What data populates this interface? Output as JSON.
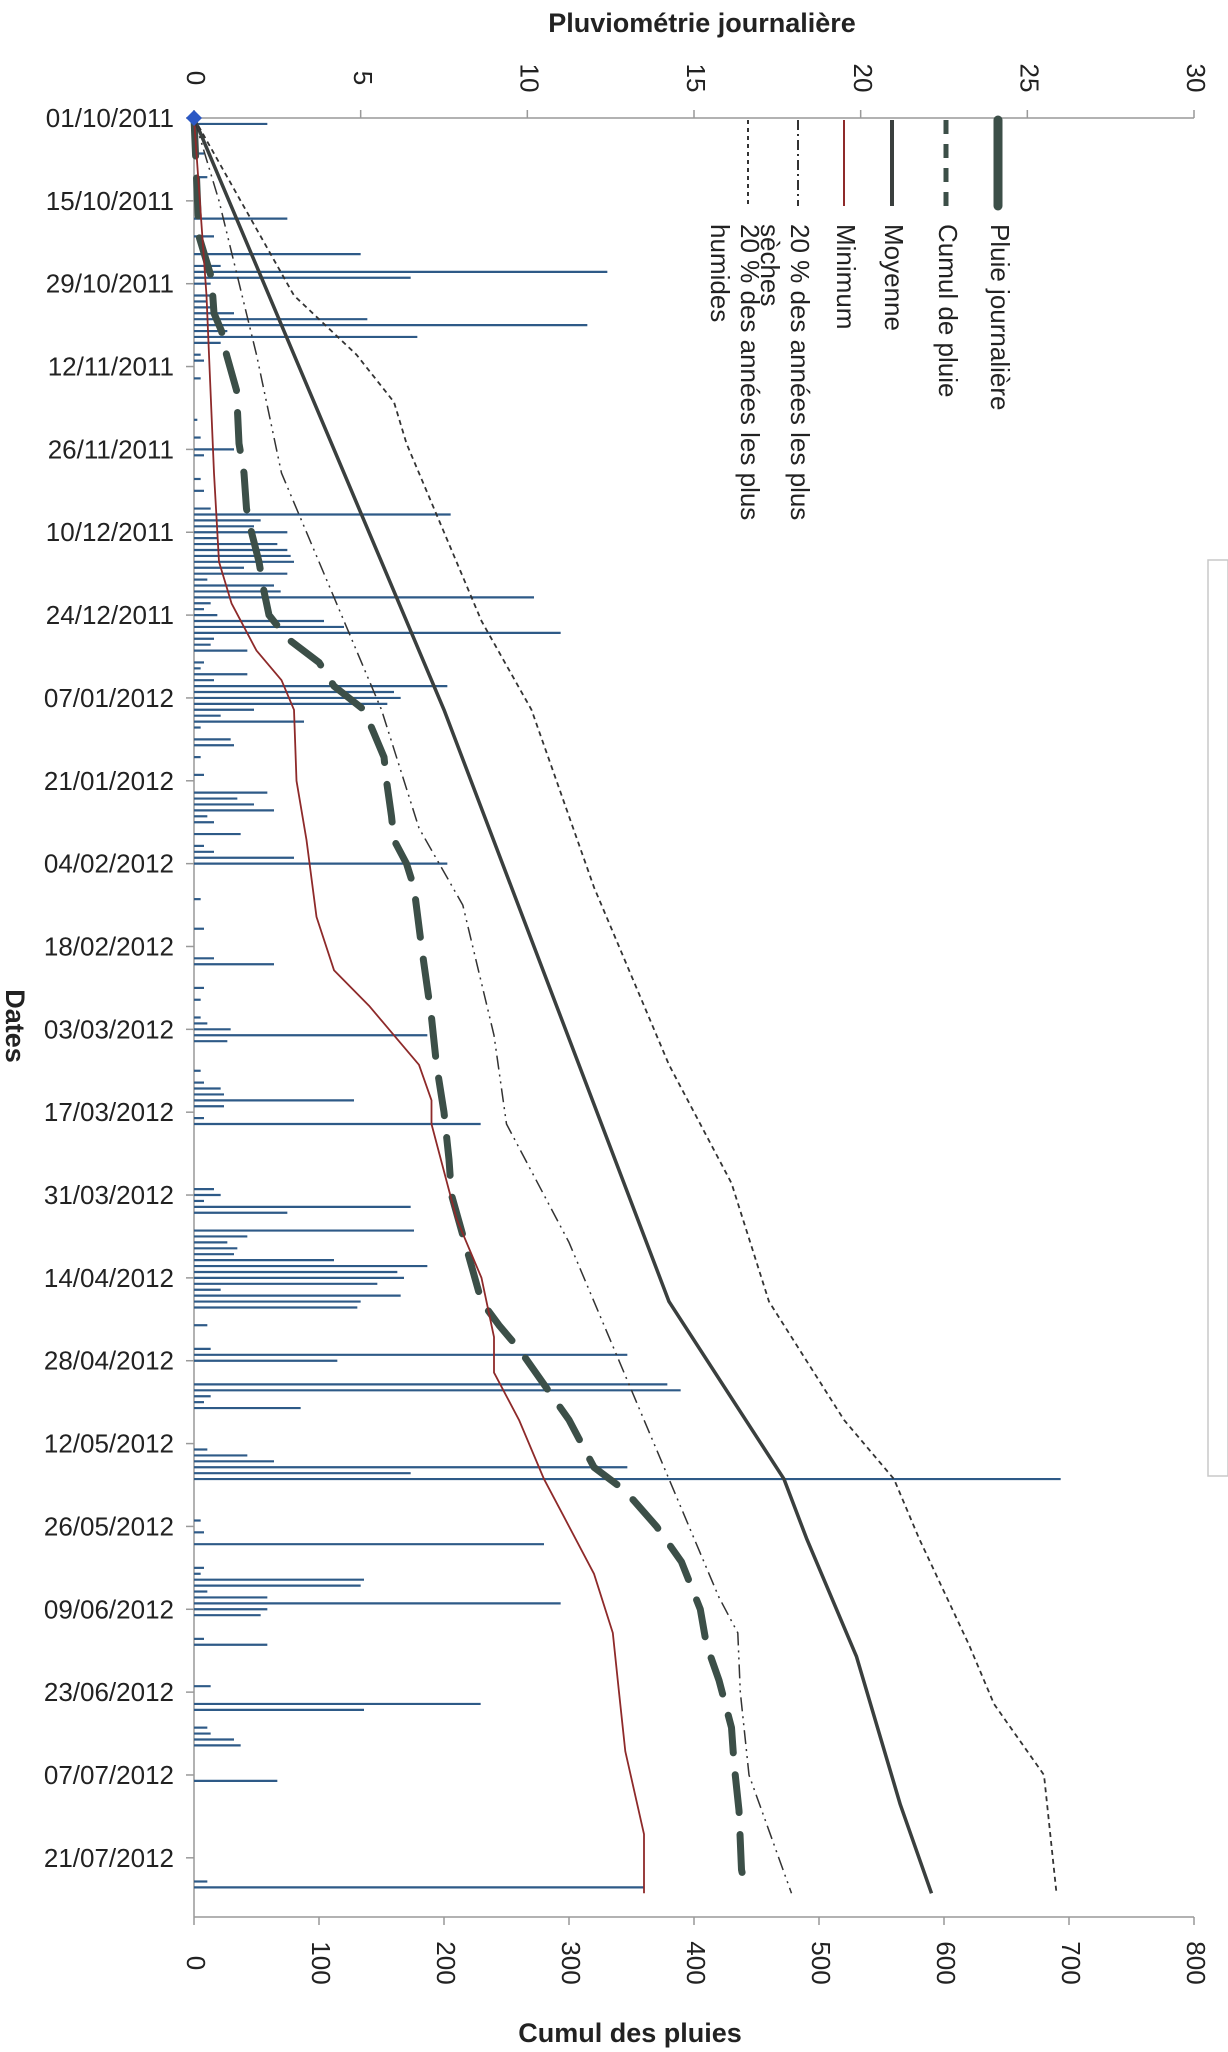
{
  "chart_data": {
    "type": "line",
    "orientation": "rotated-90",
    "top_axis_title": "Pluviométrie journalière",
    "bottom_axis_title": "Cumul des pluies",
    "date_axis_title": "Dates",
    "daily_axis": {
      "min": 0,
      "max": 30,
      "ticks": [
        "0",
        "5",
        "10",
        "15",
        "20",
        "25",
        "30"
      ]
    },
    "cumul_axis": {
      "min": 0,
      "max": 800,
      "ticks": [
        "0",
        "100",
        "200",
        "300",
        "400",
        "500",
        "600",
        "700",
        "800"
      ]
    },
    "date_ticks": [
      "01/10/2011",
      "15/10/2011",
      "29/10/2011",
      "12/11/2011",
      "26/11/2011",
      "10/12/2011",
      "24/12/2011",
      "07/01/2012",
      "21/01/2012",
      "04/02/2012",
      "18/02/2012",
      "03/03/2012",
      "17/03/2012",
      "31/03/2012",
      "14/04/2012",
      "28/04/2012",
      "12/05/2012",
      "26/05/2012",
      "09/06/2012",
      "23/06/2012",
      "07/07/2012",
      "21/07/2012"
    ],
    "grid": false,
    "legend_position": "top-right (rotated)",
    "legend": [
      {
        "key": "pluie",
        "label": "Pluie journalière",
        "color": "#3c4f48",
        "style": "thick"
      },
      {
        "key": "cumul",
        "label": "Cumul de pluie",
        "color": "#3c4f48",
        "style": "dash"
      },
      {
        "key": "moyenne",
        "label": "Moyenne",
        "color": "#3a3f3e",
        "style": "solid"
      },
      {
        "key": "minimum",
        "label": "Minimum",
        "color": "#8e2a2a",
        "style": "solid-thin"
      },
      {
        "key": "seches",
        "label_lines": [
          "20 % des années les plus",
          "sèches"
        ],
        "color": "#333333",
        "style": "dash-dot-dot"
      },
      {
        "key": "humides",
        "label_lines": [
          "20 % des années les plus",
          "humides"
        ],
        "color": "#333333",
        "style": "dotted"
      }
    ],
    "daily_rain": [
      {
        "day": 1,
        "value": 2.2
      },
      {
        "day": 6,
        "value": 0.3
      },
      {
        "day": 10,
        "value": 0.4
      },
      {
        "day": 17,
        "value": 2.8
      },
      {
        "day": 20,
        "value": 0.6
      },
      {
        "day": 23,
        "value": 5.0
      },
      {
        "day": 25,
        "value": 0.8
      },
      {
        "day": 26,
        "value": 12.4
      },
      {
        "day": 27,
        "value": 6.5
      },
      {
        "day": 28,
        "value": 0.5
      },
      {
        "day": 30,
        "value": 0.5
      },
      {
        "day": 31,
        "value": 0.4
      },
      {
        "day": 32,
        "value": 0.6
      },
      {
        "day": 33,
        "value": 1.2
      },
      {
        "day": 34,
        "value": 5.2
      },
      {
        "day": 35,
        "value": 11.8
      },
      {
        "day": 36,
        "value": 1.0
      },
      {
        "day": 37,
        "value": 6.7
      },
      {
        "day": 38,
        "value": 0.8
      },
      {
        "day": 40,
        "value": 0.2
      },
      {
        "day": 41,
        "value": 0.3
      },
      {
        "day": 44,
        "value": 0.2
      },
      {
        "day": 51,
        "value": 0.1
      },
      {
        "day": 54,
        "value": 0.2
      },
      {
        "day": 56,
        "value": 1.2
      },
      {
        "day": 57,
        "value": 0.3
      },
      {
        "day": 61,
        "value": 0.2
      },
      {
        "day": 63,
        "value": 0.3
      },
      {
        "day": 66,
        "value": 0.5
      },
      {
        "day": 67,
        "value": 7.7
      },
      {
        "day": 68,
        "value": 2.0
      },
      {
        "day": 69,
        "value": 1.8
      },
      {
        "day": 70,
        "value": 2.8
      },
      {
        "day": 71,
        "value": 0.7
      },
      {
        "day": 72,
        "value": 2.5
      },
      {
        "day": 73,
        "value": 2.8
      },
      {
        "day": 74,
        "value": 2.9
      },
      {
        "day": 75,
        "value": 3.0
      },
      {
        "day": 76,
        "value": 1.5
      },
      {
        "day": 77,
        "value": 2.8
      },
      {
        "day": 78,
        "value": 0.4
      },
      {
        "day": 79,
        "value": 2.4
      },
      {
        "day": 80,
        "value": 2.6
      },
      {
        "day": 81,
        "value": 10.2
      },
      {
        "day": 82,
        "value": 0.5
      },
      {
        "day": 83,
        "value": 0.3
      },
      {
        "day": 84,
        "value": 0.7
      },
      {
        "day": 85,
        "value": 3.9
      },
      {
        "day": 86,
        "value": 4.5
      },
      {
        "day": 87,
        "value": 11.0
      },
      {
        "day": 88,
        "value": 0.6
      },
      {
        "day": 89,
        "value": 0.5
      },
      {
        "day": 90,
        "value": 1.6
      },
      {
        "day": 92,
        "value": 0.3
      },
      {
        "day": 93,
        "value": 0.2
      },
      {
        "day": 94,
        "value": 1.6
      },
      {
        "day": 95,
        "value": 0.6
      },
      {
        "day": 96,
        "value": 7.6
      },
      {
        "day": 97,
        "value": 6.0
      },
      {
        "day": 98,
        "value": 6.2
      },
      {
        "day": 99,
        "value": 5.8
      },
      {
        "day": 100,
        "value": 1.8
      },
      {
        "day": 101,
        "value": 0.8
      },
      {
        "day": 102,
        "value": 3.3
      },
      {
        "day": 103,
        "value": 0.2
      },
      {
        "day": 105,
        "value": 1.1
      },
      {
        "day": 106,
        "value": 1.2
      },
      {
        "day": 108,
        "value": 0.2
      },
      {
        "day": 111,
        "value": 0.3
      },
      {
        "day": 114,
        "value": 2.2
      },
      {
        "day": 115,
        "value": 1.3
      },
      {
        "day": 116,
        "value": 1.8
      },
      {
        "day": 117,
        "value": 2.4
      },
      {
        "day": 118,
        "value": 0.4
      },
      {
        "day": 119,
        "value": 0.6
      },
      {
        "day": 121,
        "value": 1.4
      },
      {
        "day": 123,
        "value": 0.3
      },
      {
        "day": 124,
        "value": 0.6
      },
      {
        "day": 125,
        "value": 3.0
      },
      {
        "day": 126,
        "value": 7.6
      },
      {
        "day": 132,
        "value": 0.2
      },
      {
        "day": 137,
        "value": 0.3
      },
      {
        "day": 142,
        "value": 0.6
      },
      {
        "day": 143,
        "value": 2.4
      },
      {
        "day": 147,
        "value": 0.3
      },
      {
        "day": 149,
        "value": 0.2
      },
      {
        "day": 152,
        "value": 0.2
      },
      {
        "day": 153,
        "value": 0.4
      },
      {
        "day": 154,
        "value": 1.1
      },
      {
        "day": 155,
        "value": 7.0
      },
      {
        "day": 156,
        "value": 1.0
      },
      {
        "day": 161,
        "value": 0.2
      },
      {
        "day": 163,
        "value": 0.3
      },
      {
        "day": 164,
        "value": 0.8
      },
      {
        "day": 165,
        "value": 0.9
      },
      {
        "day": 166,
        "value": 4.8
      },
      {
        "day": 167,
        "value": 0.9
      },
      {
        "day": 169,
        "value": 0.3
      },
      {
        "day": 170,
        "value": 8.6
      },
      {
        "day": 181,
        "value": 0.6
      },
      {
        "day": 182,
        "value": 0.8
      },
      {
        "day": 183,
        "value": 0.3
      },
      {
        "day": 184,
        "value": 6.5
      },
      {
        "day": 185,
        "value": 2.8
      },
      {
        "day": 188,
        "value": 6.6
      },
      {
        "day": 189,
        "value": 1.6
      },
      {
        "day": 190,
        "value": 1.0
      },
      {
        "day": 191,
        "value": 1.3
      },
      {
        "day": 192,
        "value": 1.2
      },
      {
        "day": 193,
        "value": 4.2
      },
      {
        "day": 194,
        "value": 7.0
      },
      {
        "day": 195,
        "value": 6.1
      },
      {
        "day": 196,
        "value": 6.3
      },
      {
        "day": 197,
        "value": 5.5
      },
      {
        "day": 198,
        "value": 0.8
      },
      {
        "day": 199,
        "value": 6.2
      },
      {
        "day": 200,
        "value": 5.0
      },
      {
        "day": 201,
        "value": 4.9
      },
      {
        "day": 204,
        "value": 0.4
      },
      {
        "day": 208,
        "value": 0.5
      },
      {
        "day": 209,
        "value": 13.0
      },
      {
        "day": 210,
        "value": 4.3
      },
      {
        "day": 214,
        "value": 14.2
      },
      {
        "day": 215,
        "value": 14.6
      },
      {
        "day": 216,
        "value": 0.5
      },
      {
        "day": 217,
        "value": 0.3
      },
      {
        "day": 218,
        "value": 3.2
      },
      {
        "day": 225,
        "value": 0.4
      },
      {
        "day": 226,
        "value": 1.6
      },
      {
        "day": 227,
        "value": 2.4
      },
      {
        "day": 228,
        "value": 13.0
      },
      {
        "day": 229,
        "value": 6.5
      },
      {
        "day": 230,
        "value": 26.0
      },
      {
        "day": 237,
        "value": 0.2
      },
      {
        "day": 239,
        "value": 0.3
      },
      {
        "day": 241,
        "value": 10.5
      },
      {
        "day": 245,
        "value": 0.3
      },
      {
        "day": 246,
        "value": 0.2
      },
      {
        "day": 247,
        "value": 5.1
      },
      {
        "day": 248,
        "value": 5.0
      },
      {
        "day": 249,
        "value": 0.4
      },
      {
        "day": 250,
        "value": 2.2
      },
      {
        "day": 251,
        "value": 11.0
      },
      {
        "day": 252,
        "value": 2.2
      },
      {
        "day": 253,
        "value": 2.0
      },
      {
        "day": 257,
        "value": 0.3
      },
      {
        "day": 258,
        "value": 2.2
      },
      {
        "day": 265,
        "value": 0.5
      },
      {
        "day": 268,
        "value": 8.6
      },
      {
        "day": 269,
        "value": 5.1
      },
      {
        "day": 272,
        "value": 0.4
      },
      {
        "day": 273,
        "value": 0.5
      },
      {
        "day": 274,
        "value": 1.2
      },
      {
        "day": 275,
        "value": 1.4
      },
      {
        "day": 281,
        "value": 2.5
      },
      {
        "day": 298,
        "value": 0.4
      },
      {
        "day": 299,
        "value": 13.5
      }
    ],
    "series": [
      {
        "name": "Cumul de pluie",
        "key": "cumul",
        "points": [
          [
            0,
            0
          ],
          [
            10,
            2
          ],
          [
            20,
            4
          ],
          [
            27,
            14
          ],
          [
            33,
            16
          ],
          [
            36,
            22
          ],
          [
            40,
            26
          ],
          [
            46,
            34
          ],
          [
            55,
            36
          ],
          [
            60,
            40
          ],
          [
            66,
            42
          ],
          [
            70,
            46
          ],
          [
            75,
            52
          ],
          [
            80,
            56
          ],
          [
            84,
            60
          ],
          [
            88,
            75
          ],
          [
            92,
            100
          ],
          [
            96,
            112
          ],
          [
            100,
            136
          ],
          [
            104,
            144
          ],
          [
            108,
            152
          ],
          [
            112,
            154
          ],
          [
            118,
            158
          ],
          [
            122,
            160
          ],
          [
            126,
            170
          ],
          [
            130,
            176
          ],
          [
            140,
            182
          ],
          [
            152,
            190
          ],
          [
            160,
            194
          ],
          [
            168,
            200
          ],
          [
            176,
            204
          ],
          [
            182,
            206
          ],
          [
            188,
            214
          ],
          [
            194,
            222
          ],
          [
            200,
            230
          ],
          [
            204,
            244
          ],
          [
            208,
            260
          ],
          [
            214,
            280
          ],
          [
            220,
            300
          ],
          [
            228,
            320
          ],
          [
            232,
            345
          ],
          [
            238,
            370
          ],
          [
            244,
            390
          ],
          [
            252,
            405
          ],
          [
            258,
            410
          ],
          [
            264,
            420
          ],
          [
            272,
            430
          ],
          [
            278,
            432
          ],
          [
            286,
            436
          ],
          [
            296,
            438
          ],
          [
            300,
            442
          ]
        ]
      },
      {
        "name": "Moyenne",
        "key": "moyenne",
        "points": [
          [
            0,
            0
          ],
          [
            60,
            120
          ],
          [
            100,
            200
          ],
          [
            150,
            290
          ],
          [
            200,
            380
          ],
          [
            230,
            472
          ],
          [
            240,
            490
          ],
          [
            260,
            530
          ],
          [
            285,
            565
          ],
          [
            300,
            590
          ]
        ]
      },
      {
        "name": "Minimum",
        "key": "minimum",
        "points": [
          [
            0,
            0
          ],
          [
            30,
            10
          ],
          [
            60,
            16
          ],
          [
            75,
            20
          ],
          [
            82,
            30
          ],
          [
            90,
            50
          ],
          [
            95,
            70
          ],
          [
            100,
            80
          ],
          [
            112,
            82
          ],
          [
            122,
            90
          ],
          [
            135,
            98
          ],
          [
            144,
            112
          ],
          [
            150,
            140
          ],
          [
            155,
            160
          ],
          [
            160,
            180
          ],
          [
            166,
            190
          ],
          [
            170,
            190
          ],
          [
            178,
            200
          ],
          [
            186,
            210
          ],
          [
            196,
            230
          ],
          [
            206,
            240
          ],
          [
            212,
            240
          ],
          [
            220,
            260
          ],
          [
            230,
            280
          ],
          [
            236,
            295
          ],
          [
            246,
            320
          ],
          [
            256,
            335
          ],
          [
            266,
            340
          ],
          [
            276,
            345
          ],
          [
            290,
            360
          ],
          [
            300,
            360
          ]
        ]
      },
      {
        "name": "20 % des années les plus sèches",
        "key": "seches",
        "points": [
          [
            0,
            0
          ],
          [
            14,
            20
          ],
          [
            40,
            50
          ],
          [
            60,
            70
          ],
          [
            80,
            110
          ],
          [
            100,
            150
          ],
          [
            120,
            180
          ],
          [
            133,
            215
          ],
          [
            155,
            240
          ],
          [
            170,
            250
          ],
          [
            190,
            300
          ],
          [
            210,
            340
          ],
          [
            230,
            380
          ],
          [
            240,
            400
          ],
          [
            250,
            420
          ],
          [
            256,
            435
          ],
          [
            266,
            437
          ],
          [
            280,
            444
          ],
          [
            300,
            478
          ]
        ]
      },
      {
        "name": "20 % des années les plus humides",
        "key": "humides",
        "points": [
          [
            0,
            0
          ],
          [
            15,
            40
          ],
          [
            30,
            80
          ],
          [
            40,
            130
          ],
          [
            48,
            160
          ],
          [
            55,
            170
          ],
          [
            70,
            200
          ],
          [
            85,
            230
          ],
          [
            100,
            270
          ],
          [
            130,
            320
          ],
          [
            160,
            380
          ],
          [
            180,
            430
          ],
          [
            200,
            460
          ],
          [
            220,
            520
          ],
          [
            230,
            560
          ],
          [
            240,
            580
          ],
          [
            258,
            620
          ],
          [
            268,
            640
          ],
          [
            280,
            680
          ],
          [
            300,
            690
          ]
        ]
      }
    ]
  }
}
